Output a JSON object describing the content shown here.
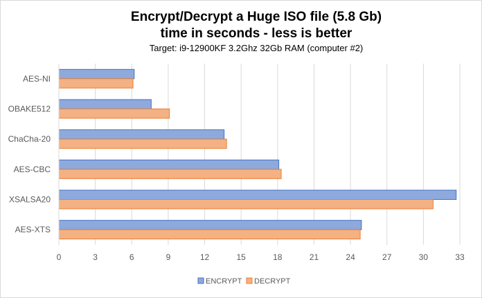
{
  "chart_data": {
    "type": "bar",
    "orientation": "horizontal",
    "title": "Encrypt/Decrypt a Huge ISO file (5.8 Gb)",
    "title_line2": "time in seconds - less is better",
    "subtitle": "Target: i9-12900KF 3.2Ghz 32Gb RAM   (computer #2)",
    "categories": [
      "AES-NI",
      "OBAKE512",
      "ChaCha-20",
      "AES-CBC",
      "XSALSA20",
      "AES-XTS"
    ],
    "series": [
      {
        "name": "ENCRYPT",
        "color": "#8EA9DB",
        "border": "#4472C4",
        "values": [
          6.2,
          7.6,
          13.6,
          18.1,
          32.7,
          24.9
        ]
      },
      {
        "name": "DECRYPT",
        "color": "#F4B183",
        "border": "#ED7D31",
        "values": [
          6.1,
          9.1,
          13.8,
          18.3,
          30.8,
          24.8
        ]
      }
    ],
    "xlim": [
      0,
      33
    ],
    "xticks": [
      "0",
      "3",
      "6",
      "9",
      "12",
      "15",
      "18",
      "21",
      "24",
      "27",
      "30",
      "33"
    ],
    "grid": true,
    "legend": "bottom"
  }
}
